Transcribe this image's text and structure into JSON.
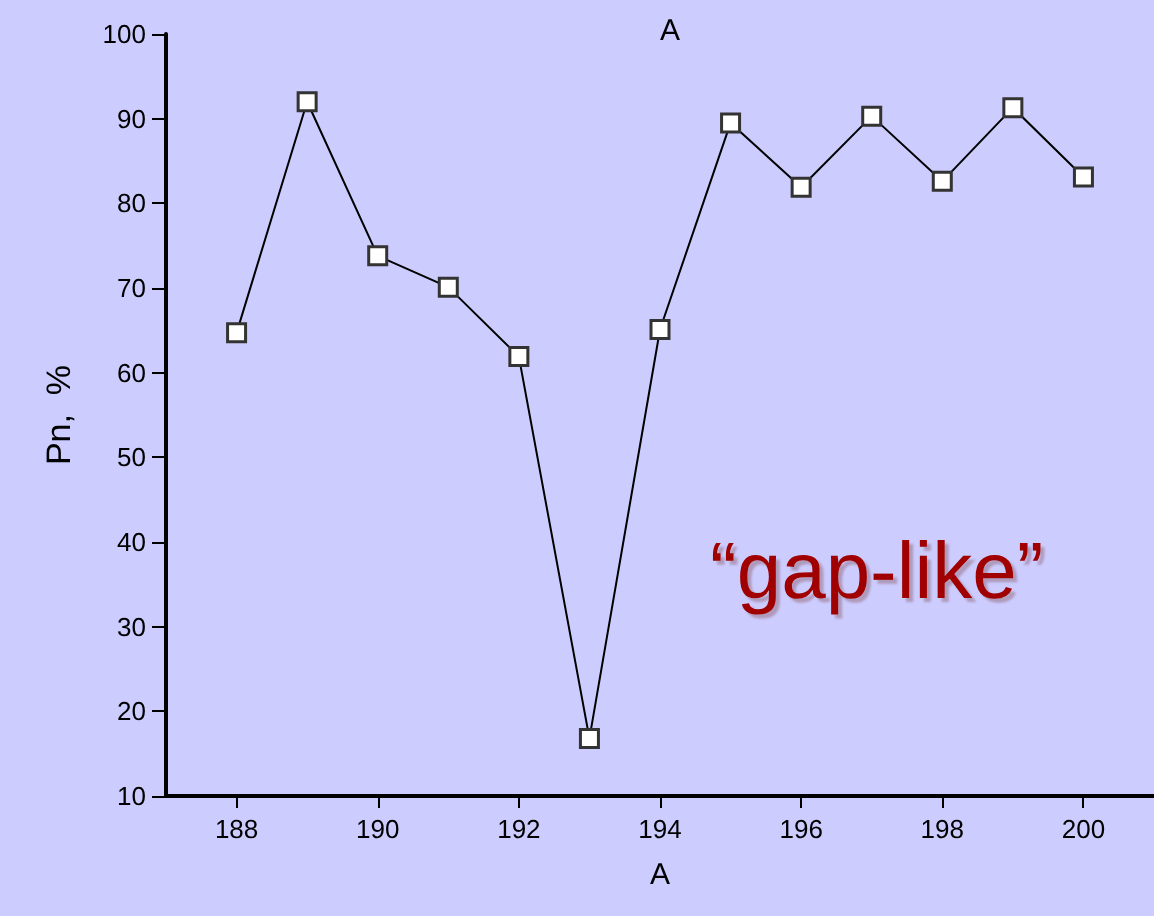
{
  "chart_data": {
    "type": "line",
    "title": "A",
    "xlabel": "A",
    "ylabel": "Pn,  %",
    "x": [
      188,
      189,
      190,
      191,
      192,
      193,
      194,
      195,
      196,
      197,
      198,
      199,
      200
    ],
    "series": [
      {
        "color": "#000000",
        "values": [
          64.7,
          92,
          73.8,
          70.1,
          61.9,
          16.8,
          65.1,
          89.5,
          81.9,
          90.3,
          82.6,
          91.3,
          83.1
        ]
      }
    ],
    "xlim": [
      187,
      201
    ],
    "xticks": [
      188,
      190,
      192,
      194,
      196,
      198,
      200
    ],
    "ylim": [
      10,
      100
    ],
    "yticks": [
      10,
      20,
      30,
      40,
      50,
      60,
      70,
      80,
      90,
      100
    ],
    "annotations": [
      "“gap-like”"
    ],
    "marker": "square",
    "line_style": "solid",
    "grid": false
  }
}
